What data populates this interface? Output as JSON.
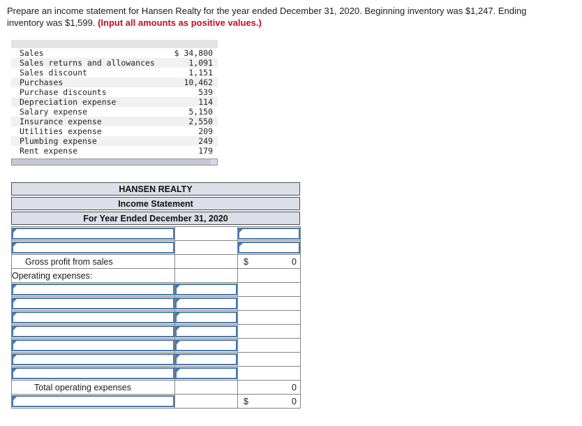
{
  "instructions": {
    "line1": "Prepare an income statement for Hansen Realty for the year ended December 31, 2020. Beginning inventory was $1,247. Ending",
    "line2": "inventory was $1,599. ",
    "line2_emphasis": "(Input all amounts as positive values.)"
  },
  "trial_balance": {
    "rows": [
      {
        "label": "Sales",
        "amount": "$ 34,800"
      },
      {
        "label": "Sales returns and allowances",
        "amount": "1,091"
      },
      {
        "label": "Sales discount",
        "amount": "1,151"
      },
      {
        "label": "Purchases",
        "amount": "10,462"
      },
      {
        "label": "Purchase discounts",
        "amount": "539"
      },
      {
        "label": "Depreciation expense",
        "amount": "114"
      },
      {
        "label": "Salary expense",
        "amount": "5,150"
      },
      {
        "label": "Insurance expense",
        "amount": "2,550"
      },
      {
        "label": "Utilities expense",
        "amount": "209"
      },
      {
        "label": "Plumbing expense",
        "amount": "249"
      },
      {
        "label": "Rent expense",
        "amount": "179"
      }
    ]
  },
  "statement": {
    "company": "HANSEN REALTY",
    "title": "Income Statement",
    "period": "For Year Ended December 31, 2020",
    "rows": [
      {
        "type": "entry",
        "inputs": [
          "c1",
          "c3"
        ]
      },
      {
        "type": "entry",
        "inputs": [
          "c1",
          "c3"
        ]
      },
      {
        "type": "total",
        "label": "Gross profit from sales",
        "indent": "indent-md",
        "dollar": "$",
        "value": "0",
        "rule": "rule-strong"
      },
      {
        "type": "section",
        "label": "Operating expenses:"
      },
      {
        "type": "entry",
        "inputs": [
          "c1",
          "c2"
        ]
      },
      {
        "type": "entry",
        "inputs": [
          "c1",
          "c2"
        ]
      },
      {
        "type": "entry",
        "inputs": [
          "c1",
          "c2"
        ]
      },
      {
        "type": "entry",
        "inputs": [
          "c1",
          "c2"
        ]
      },
      {
        "type": "entry",
        "inputs": [
          "c1",
          "c2"
        ]
      },
      {
        "type": "entry",
        "inputs": [
          "c1",
          "c2"
        ]
      },
      {
        "type": "entry",
        "inputs": [
          "c1",
          "c2"
        ]
      },
      {
        "type": "total",
        "label": "Total operating expenses",
        "indent": "indent-lg",
        "dollar": "",
        "value": "0",
        "rule": "rule-thin"
      },
      {
        "type": "final",
        "inputs": [
          "c1"
        ],
        "dollar": "$",
        "value": "0"
      }
    ]
  },
  "colors": {
    "input_border_blue": "#4878b0",
    "title_fill": "#dcdfe9",
    "grid_gray": "#848484",
    "emphasis_red": "#c40e21",
    "stripe_gray": "#f1f1f1",
    "column_header_gray": "#e3e3e6",
    "scrollbar_track": "#d8d9e2",
    "scrollbar_thumb": "#c6c8d5"
  }
}
